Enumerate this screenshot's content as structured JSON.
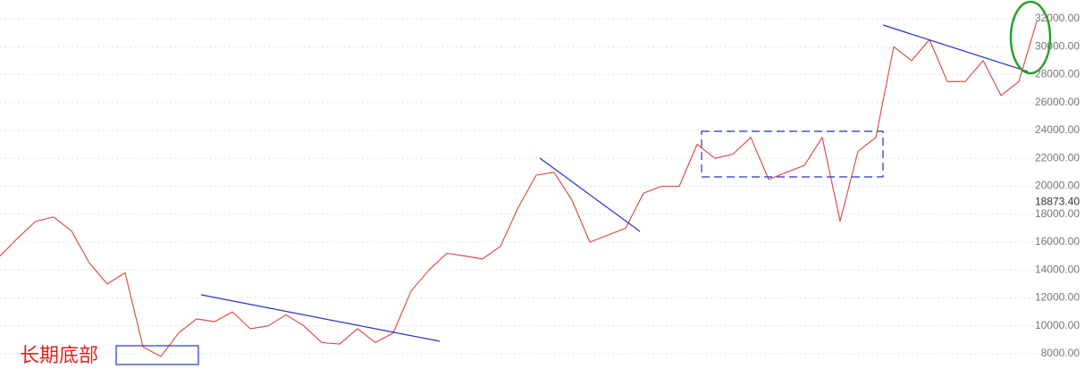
{
  "chart_data": {
    "type": "line",
    "annotation": "长期底部",
    "series": [
      {
        "color": "#d9423f",
        "values": [
          15000,
          16300,
          17500,
          17800,
          16800,
          14500,
          13000,
          13800,
          8500,
          7800,
          9500,
          10500,
          10300,
          11000,
          9800,
          10000,
          10800,
          10000,
          8800,
          8700,
          9800,
          8800,
          9500,
          12500,
          14000,
          15200,
          15000,
          14800,
          15700,
          18500,
          20800,
          21000,
          19000,
          16000,
          16500,
          17000,
          19500,
          20000,
          20000,
          23000,
          22000,
          22300,
          23500,
          20500,
          21000,
          21500,
          23500,
          17500,
          22500,
          23500,
          30000,
          29000,
          30500,
          27500,
          27500,
          29000,
          26500,
          27500,
          31800
        ]
      }
    ],
    "ylim": [
      6400,
      33300
    ],
    "yticks": [
      {
        "value": 8000,
        "label": "8000.00"
      },
      {
        "value": 10000,
        "label": "10000.00"
      },
      {
        "value": 12000,
        "label": "12000.00"
      },
      {
        "value": 14000,
        "label": "14000.00"
      },
      {
        "value": 16000,
        "label": "16000.00"
      },
      {
        "value": 18000,
        "label": "18000.00"
      },
      {
        "value": 20000,
        "label": "20000.00"
      },
      {
        "value": 22000,
        "label": "22000.00"
      },
      {
        "value": 24000,
        "label": "24000.00"
      },
      {
        "value": 26000,
        "label": "26000.00"
      },
      {
        "value": 28000,
        "label": "28000.00"
      },
      {
        "value": 30000,
        "label": "30000.00"
      },
      {
        "value": 32000,
        "label": "32000.00"
      }
    ],
    "marker": {
      "value": 18873.4,
      "label": "18873.40"
    },
    "grid": true
  }
}
